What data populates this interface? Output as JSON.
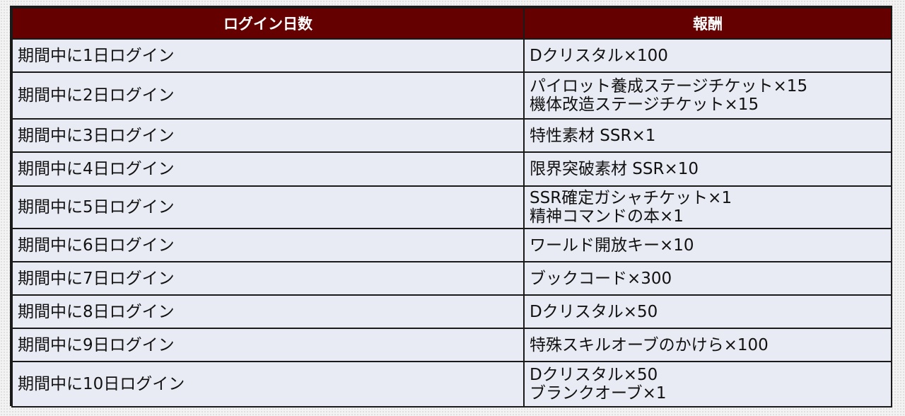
{
  "table": {
    "headers": {
      "login_days": "ログイン日数",
      "reward": "報酬"
    },
    "rows": [
      {
        "days": "期間中に1日ログイン",
        "rewards": [
          "Dクリスタル×100"
        ]
      },
      {
        "days": "期間中に2日ログイン",
        "rewards": [
          "パイロット養成ステージチケット×15",
          "機体改造ステージチケット×15"
        ]
      },
      {
        "days": "期間中に3日ログイン",
        "rewards": [
          "特性素材 SSR×1"
        ]
      },
      {
        "days": "期間中に4日ログイン",
        "rewards": [
          "限界突破素材 SSR×10"
        ]
      },
      {
        "days": "期間中に5日ログイン",
        "rewards": [
          "SSR確定ガシャチケット×1",
          "精神コマンドの本×1"
        ]
      },
      {
        "days": "期間中に6日ログイン",
        "rewards": [
          "ワールド開放キー×10"
        ]
      },
      {
        "days": "期間中に7日ログイン",
        "rewards": [
          "ブックコード×300"
        ]
      },
      {
        "days": "期間中に8日ログイン",
        "rewards": [
          "Dクリスタル×50"
        ]
      },
      {
        "days": "期間中に9日ログイン",
        "rewards": [
          "特殊スキルオーブのかけら×100"
        ]
      },
      {
        "days": "期間中に10日ログイン",
        "rewards": [
          "Dクリスタル×50",
          "ブランクオーブ×1"
        ]
      }
    ]
  },
  "colors": {
    "header_background": "#650000",
    "header_text": "#ffffff",
    "cell_background": "#e9ebf4",
    "border": "#1a1a1a"
  }
}
